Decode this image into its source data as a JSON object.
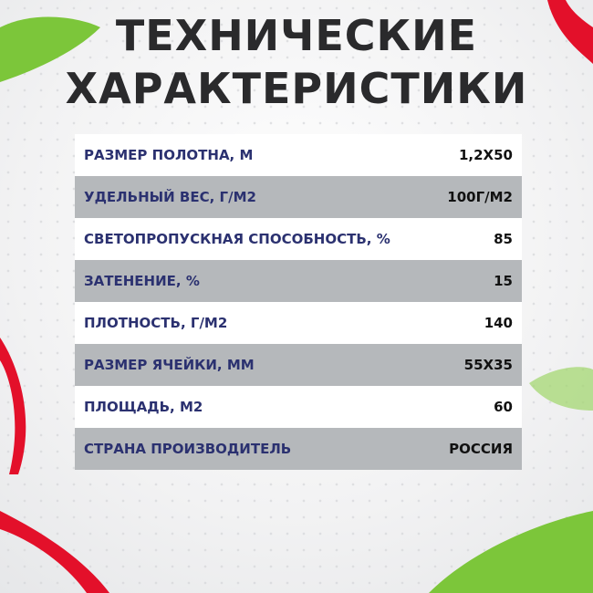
{
  "title": {
    "line1": "ТЕХНИЧЕСКИЕ",
    "line2": "ХАРАКТЕРИСТИКИ"
  },
  "colors": {
    "label": "#2b3170",
    "row_alt": "#b5b8bb",
    "ribbon": "#e3102a",
    "leaf": "#7cc63a"
  },
  "specs": [
    {
      "label": "РАЗМЕР ПОЛОТНА, М",
      "value": "1,2Х50"
    },
    {
      "label": "УДЕЛЬНЫЙ ВЕС, Г/М2",
      "value": "100Г/М2"
    },
    {
      "label": "СВЕТОПРОПУСКНАЯ СПОСОБНОСТЬ, %",
      "value": "85"
    },
    {
      "label": "ЗАТЕНЕНИЕ, %",
      "value": "15"
    },
    {
      "label": "ПЛОТНОСТЬ, Г/М2",
      "value": "140"
    },
    {
      "label": "РАЗМЕР ЯЧЕЙКИ, ММ",
      "value": "55Х35"
    },
    {
      "label": "ПЛОЩАДЬ, М2",
      "value": "60"
    },
    {
      "label": "СТРАНА ПРОИЗВОДИТЕЛЬ",
      "value": "РОССИЯ"
    }
  ]
}
